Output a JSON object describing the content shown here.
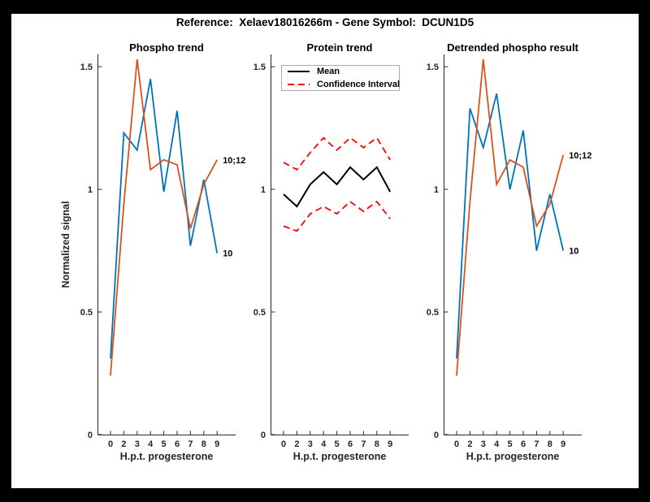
{
  "figure": {
    "title": "Reference:  Xelaev18016266m - Gene Symbol:  DCUN1D5",
    "background_color": "#FFFFFF",
    "frame_color": "#000000",
    "axis_color": "#262626"
  },
  "colors": {
    "blue_series": "#0072BD",
    "orange_series": "#D95319",
    "mean_line": "#000000",
    "confidence_interval": "#FF0000"
  },
  "chart_data": [
    {
      "type": "line",
      "title": "Phospho trend",
      "xlabel": "H.p.t. progesterone",
      "ylabel": "Normalized signal",
      "x_ticklabels": [
        "0",
        "2",
        "3",
        "4",
        "5",
        "6",
        "7",
        "8",
        "9"
      ],
      "y_ticks": [
        0,
        0.5,
        1,
        1.5
      ],
      "ylim": [
        0,
        1.55
      ],
      "grid": false,
      "series": [
        {
          "name": "10",
          "color": "#0072BD",
          "style": "solid",
          "end_label": true,
          "values": [
            0.31,
            1.23,
            1.16,
            1.45,
            0.99,
            1.32,
            0.77,
            1.04,
            0.74
          ]
        },
        {
          "name": "10;12",
          "color": "#D95319",
          "style": "solid",
          "end_label": true,
          "values": [
            0.24,
            0.94,
            1.53,
            1.08,
            1.12,
            1.1,
            0.84,
            1.02,
            1.12
          ]
        }
      ]
    },
    {
      "type": "line",
      "title": "Protein trend",
      "xlabel": "H.p.t. progesterone",
      "ylabel": "",
      "x_ticklabels": [
        "0",
        "2",
        "3",
        "4",
        "5",
        "6",
        "7",
        "8",
        "9"
      ],
      "y_ticks": [
        0,
        0.5,
        1,
        1.5
      ],
      "ylim": [
        0,
        1.55
      ],
      "grid": false,
      "legend": {
        "position": "top-left",
        "entries": [
          "Mean",
          "Confidence Interval"
        ]
      },
      "series": [
        {
          "name": "Mean",
          "color": "#000000",
          "style": "solid",
          "end_label": false,
          "values": [
            0.98,
            0.93,
            1.02,
            1.07,
            1.02,
            1.09,
            1.04,
            1.09,
            0.99
          ]
        },
        {
          "name": "Confidence Interval",
          "color": "#FF0000",
          "style": "dashed",
          "end_label": false,
          "values": [
            1.11,
            1.08,
            1.15,
            1.21,
            1.16,
            1.21,
            1.17,
            1.21,
            1.12
          ]
        },
        {
          "name": "Confidence Interval",
          "color": "#FF0000",
          "style": "dashed",
          "end_label": false,
          "values": [
            0.85,
            0.83,
            0.9,
            0.93,
            0.9,
            0.95,
            0.91,
            0.95,
            0.88
          ]
        }
      ]
    },
    {
      "type": "line",
      "title": "Detrended phospho result",
      "xlabel": "H.p.t. progesterone",
      "ylabel": "",
      "x_ticklabels": [
        "0",
        "2",
        "3",
        "4",
        "5",
        "6",
        "7",
        "8",
        "9"
      ],
      "y_ticks": [
        0,
        0.5,
        1,
        1.5
      ],
      "ylim": [
        0,
        1.55
      ],
      "grid": false,
      "series": [
        {
          "name": "10",
          "color": "#0072BD",
          "style": "solid",
          "end_label": true,
          "values": [
            0.31,
            1.33,
            1.17,
            1.39,
            1.0,
            1.24,
            0.75,
            0.98,
            0.75
          ]
        },
        {
          "name": "10;12",
          "color": "#D95319",
          "style": "solid",
          "end_label": true,
          "values": [
            0.24,
            0.95,
            1.53,
            1.02,
            1.12,
            1.09,
            0.85,
            0.94,
            1.14
          ]
        }
      ]
    }
  ]
}
